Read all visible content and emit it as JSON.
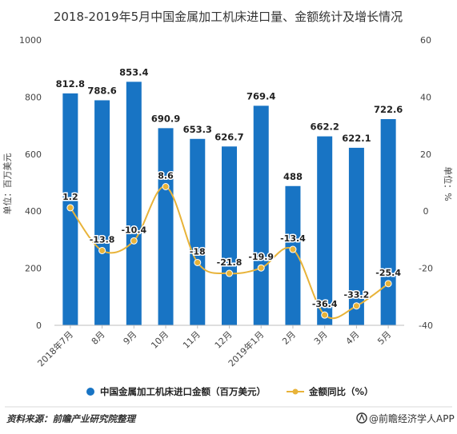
{
  "chart_data": {
    "type": "bar",
    "title": "2018-2019年5月中国金属加工机床进口量、金额统计及增长情况",
    "categories": [
      "2018年7月",
      "8月",
      "9月",
      "10月",
      "11月",
      "12月",
      "2019年1月",
      "2月",
      "3月",
      "4月",
      "5月"
    ],
    "series": [
      {
        "name": "中国金属加工机床进口金额（百万美元）",
        "type": "bar",
        "axis": "left",
        "color": "#1874c4",
        "values": [
          812.8,
          788.6,
          853.4,
          690.9,
          653.3,
          626.7,
          769.4,
          488,
          662.2,
          622.1,
          722.6
        ],
        "labels": [
          "812.8",
          "788.6",
          "853.4",
          "690.9",
          "653.3",
          "626.7",
          "769.4",
          "488",
          "662.2",
          "622.1",
          "722.6"
        ]
      },
      {
        "name": "金额同比（%）",
        "type": "line",
        "axis": "right",
        "color": "#e8b339",
        "values": [
          1.2,
          -13.8,
          -10.4,
          8.6,
          -18,
          -21.8,
          -19.9,
          -13.4,
          -36.4,
          -33.2,
          -25.4
        ],
        "labels": [
          "1.2",
          "-13.8",
          "-10.4",
          "8.6",
          "-18",
          "-21.8",
          "-19.9",
          "-13.4",
          "-36.4",
          "-33.2",
          "-25.4"
        ]
      }
    ],
    "left_axis": {
      "label": "单位：百万美元",
      "ylim": [
        0,
        1000
      ],
      "ticks": [
        "0",
        "200",
        "400",
        "600",
        "800",
        "1000"
      ]
    },
    "right_axis": {
      "label": "单位：%",
      "ylim": [
        -40,
        60
      ],
      "ticks": [
        "-40",
        "-20",
        "0",
        "20",
        "40",
        "60"
      ]
    },
    "legend_position": "bottom",
    "grid": false
  },
  "footer": {
    "source": "资料来源：前瞻产业研究院整理",
    "brand": "@前瞻经济学人APP"
  }
}
